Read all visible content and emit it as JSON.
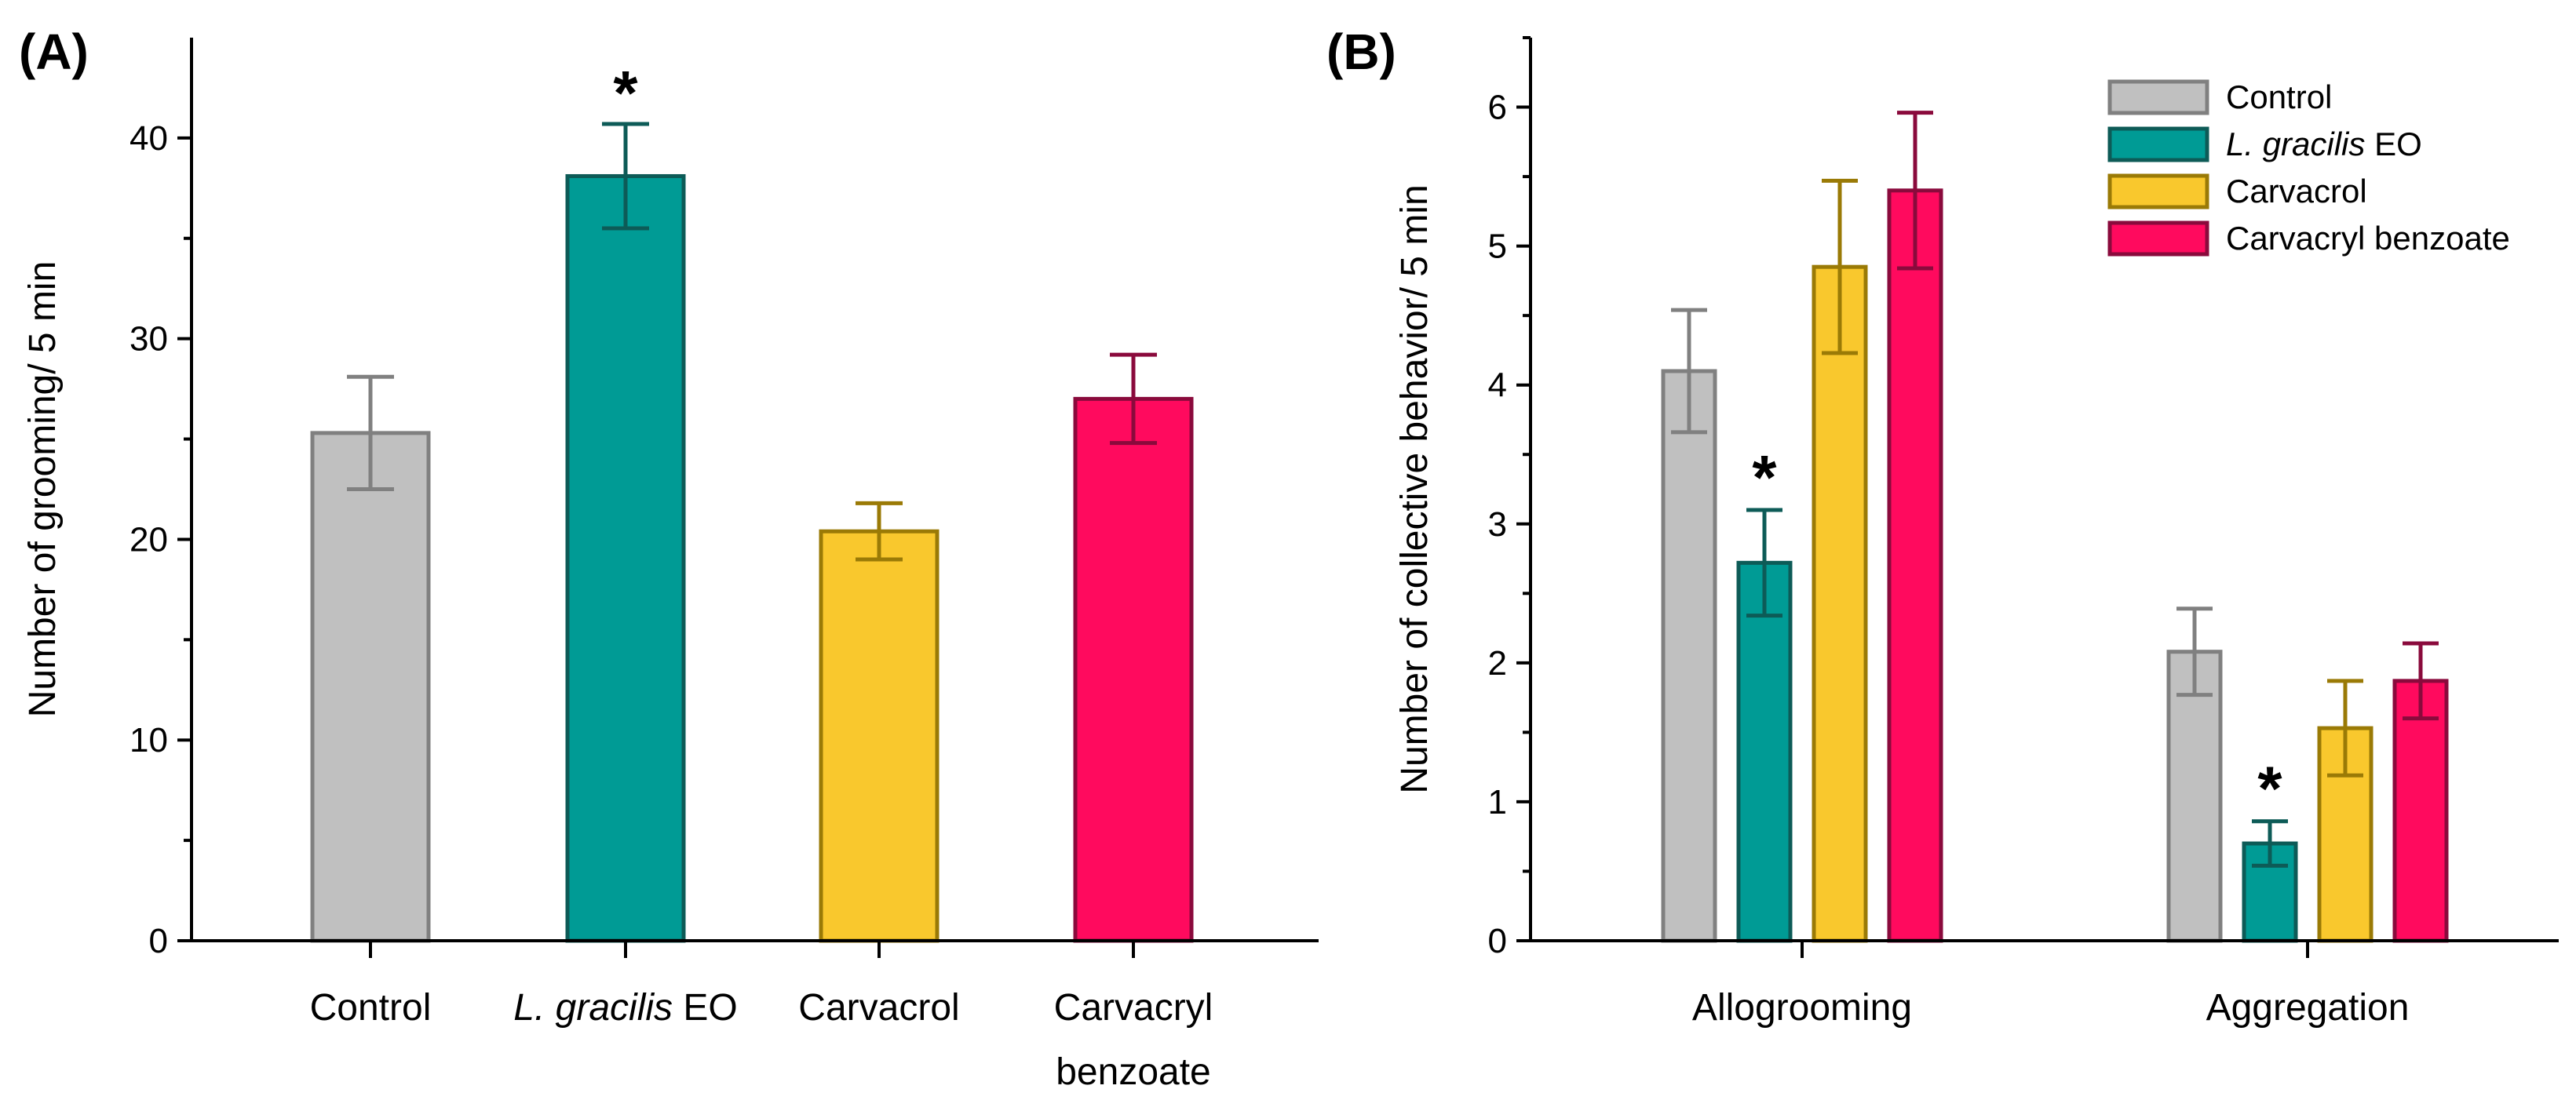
{
  "chart_data": [
    {
      "type": "bar",
      "panel": "(A)",
      "title": "",
      "xlabel": "",
      "ylabel": "Number of grooming/ 5 min",
      "ylim": [
        0,
        45
      ],
      "yticks": [
        0,
        10,
        20,
        30,
        40
      ],
      "categories": [
        {
          "lines": [
            [
              {
                "t": "Control",
                "i": false
              }
            ]
          ]
        },
        {
          "lines": [
            [
              {
                "t": "L. gracilis",
                "i": true
              },
              {
                "t": " EO",
                "i": false
              }
            ]
          ]
        },
        {
          "lines": [
            [
              {
                "t": "Carvacrol",
                "i": false
              }
            ]
          ]
        },
        {
          "lines": [
            [
              {
                "t": "Carvacryl",
                "i": false
              }
            ],
            [
              {
                "t": "benzoate",
                "i": false
              }
            ]
          ]
        }
      ],
      "values": [
        25.3,
        38.1,
        20.4,
        27.0
      ],
      "errors": [
        2.8,
        2.6,
        1.4,
        2.2
      ],
      "significance": [
        "",
        "*",
        "",
        ""
      ],
      "colors": [
        "#c0c0c0",
        "#009b95",
        "#f9c82d",
        "#ff0a5e"
      ],
      "edge_colors": [
        "#808080",
        "#0d5b57",
        "#9a7a06",
        "#8a0a3c"
      ]
    },
    {
      "type": "bar",
      "panel": "(B)",
      "title": "",
      "xlabel": "",
      "ylabel": "Number of collective behavior/ 5 min",
      "ylim": [
        0,
        6.5
      ],
      "yticks": [
        0,
        1,
        2,
        3,
        4,
        5,
        6
      ],
      "categories": [
        "Allogrooming",
        "Aggregation"
      ],
      "legend_position": "top-right",
      "series": [
        {
          "name": [
            {
              "t": "Control",
              "i": false
            }
          ],
          "values": [
            4.1,
            2.08
          ],
          "errors": [
            0.44,
            0.31
          ],
          "significance": [
            "",
            ""
          ],
          "color": "#c0c0c0",
          "edge": "#808080"
        },
        {
          "name": [
            {
              "t": "L. gracilis",
              "i": true
            },
            {
              "t": " EO",
              "i": false
            }
          ],
          "values": [
            2.72,
            0.7
          ],
          "errors": [
            0.38,
            0.16
          ],
          "significance": [
            "*",
            "*"
          ],
          "color": "#009b95",
          "edge": "#0d5b57"
        },
        {
          "name": [
            {
              "t": "Carvacrol",
              "i": false
            }
          ],
          "values": [
            4.85,
            1.53
          ],
          "errors": [
            0.62,
            0.34
          ],
          "significance": [
            "",
            ""
          ],
          "color": "#f9c82d",
          "edge": "#9a7a06"
        },
        {
          "name": [
            {
              "t": "Carvacryl benzoate",
              "i": false
            }
          ],
          "values": [
            5.4,
            1.87
          ],
          "errors": [
            0.56,
            0.27
          ],
          "significance": [
            "",
            ""
          ],
          "color": "#ff0a5e",
          "edge": "#8a0a3c"
        }
      ]
    }
  ]
}
